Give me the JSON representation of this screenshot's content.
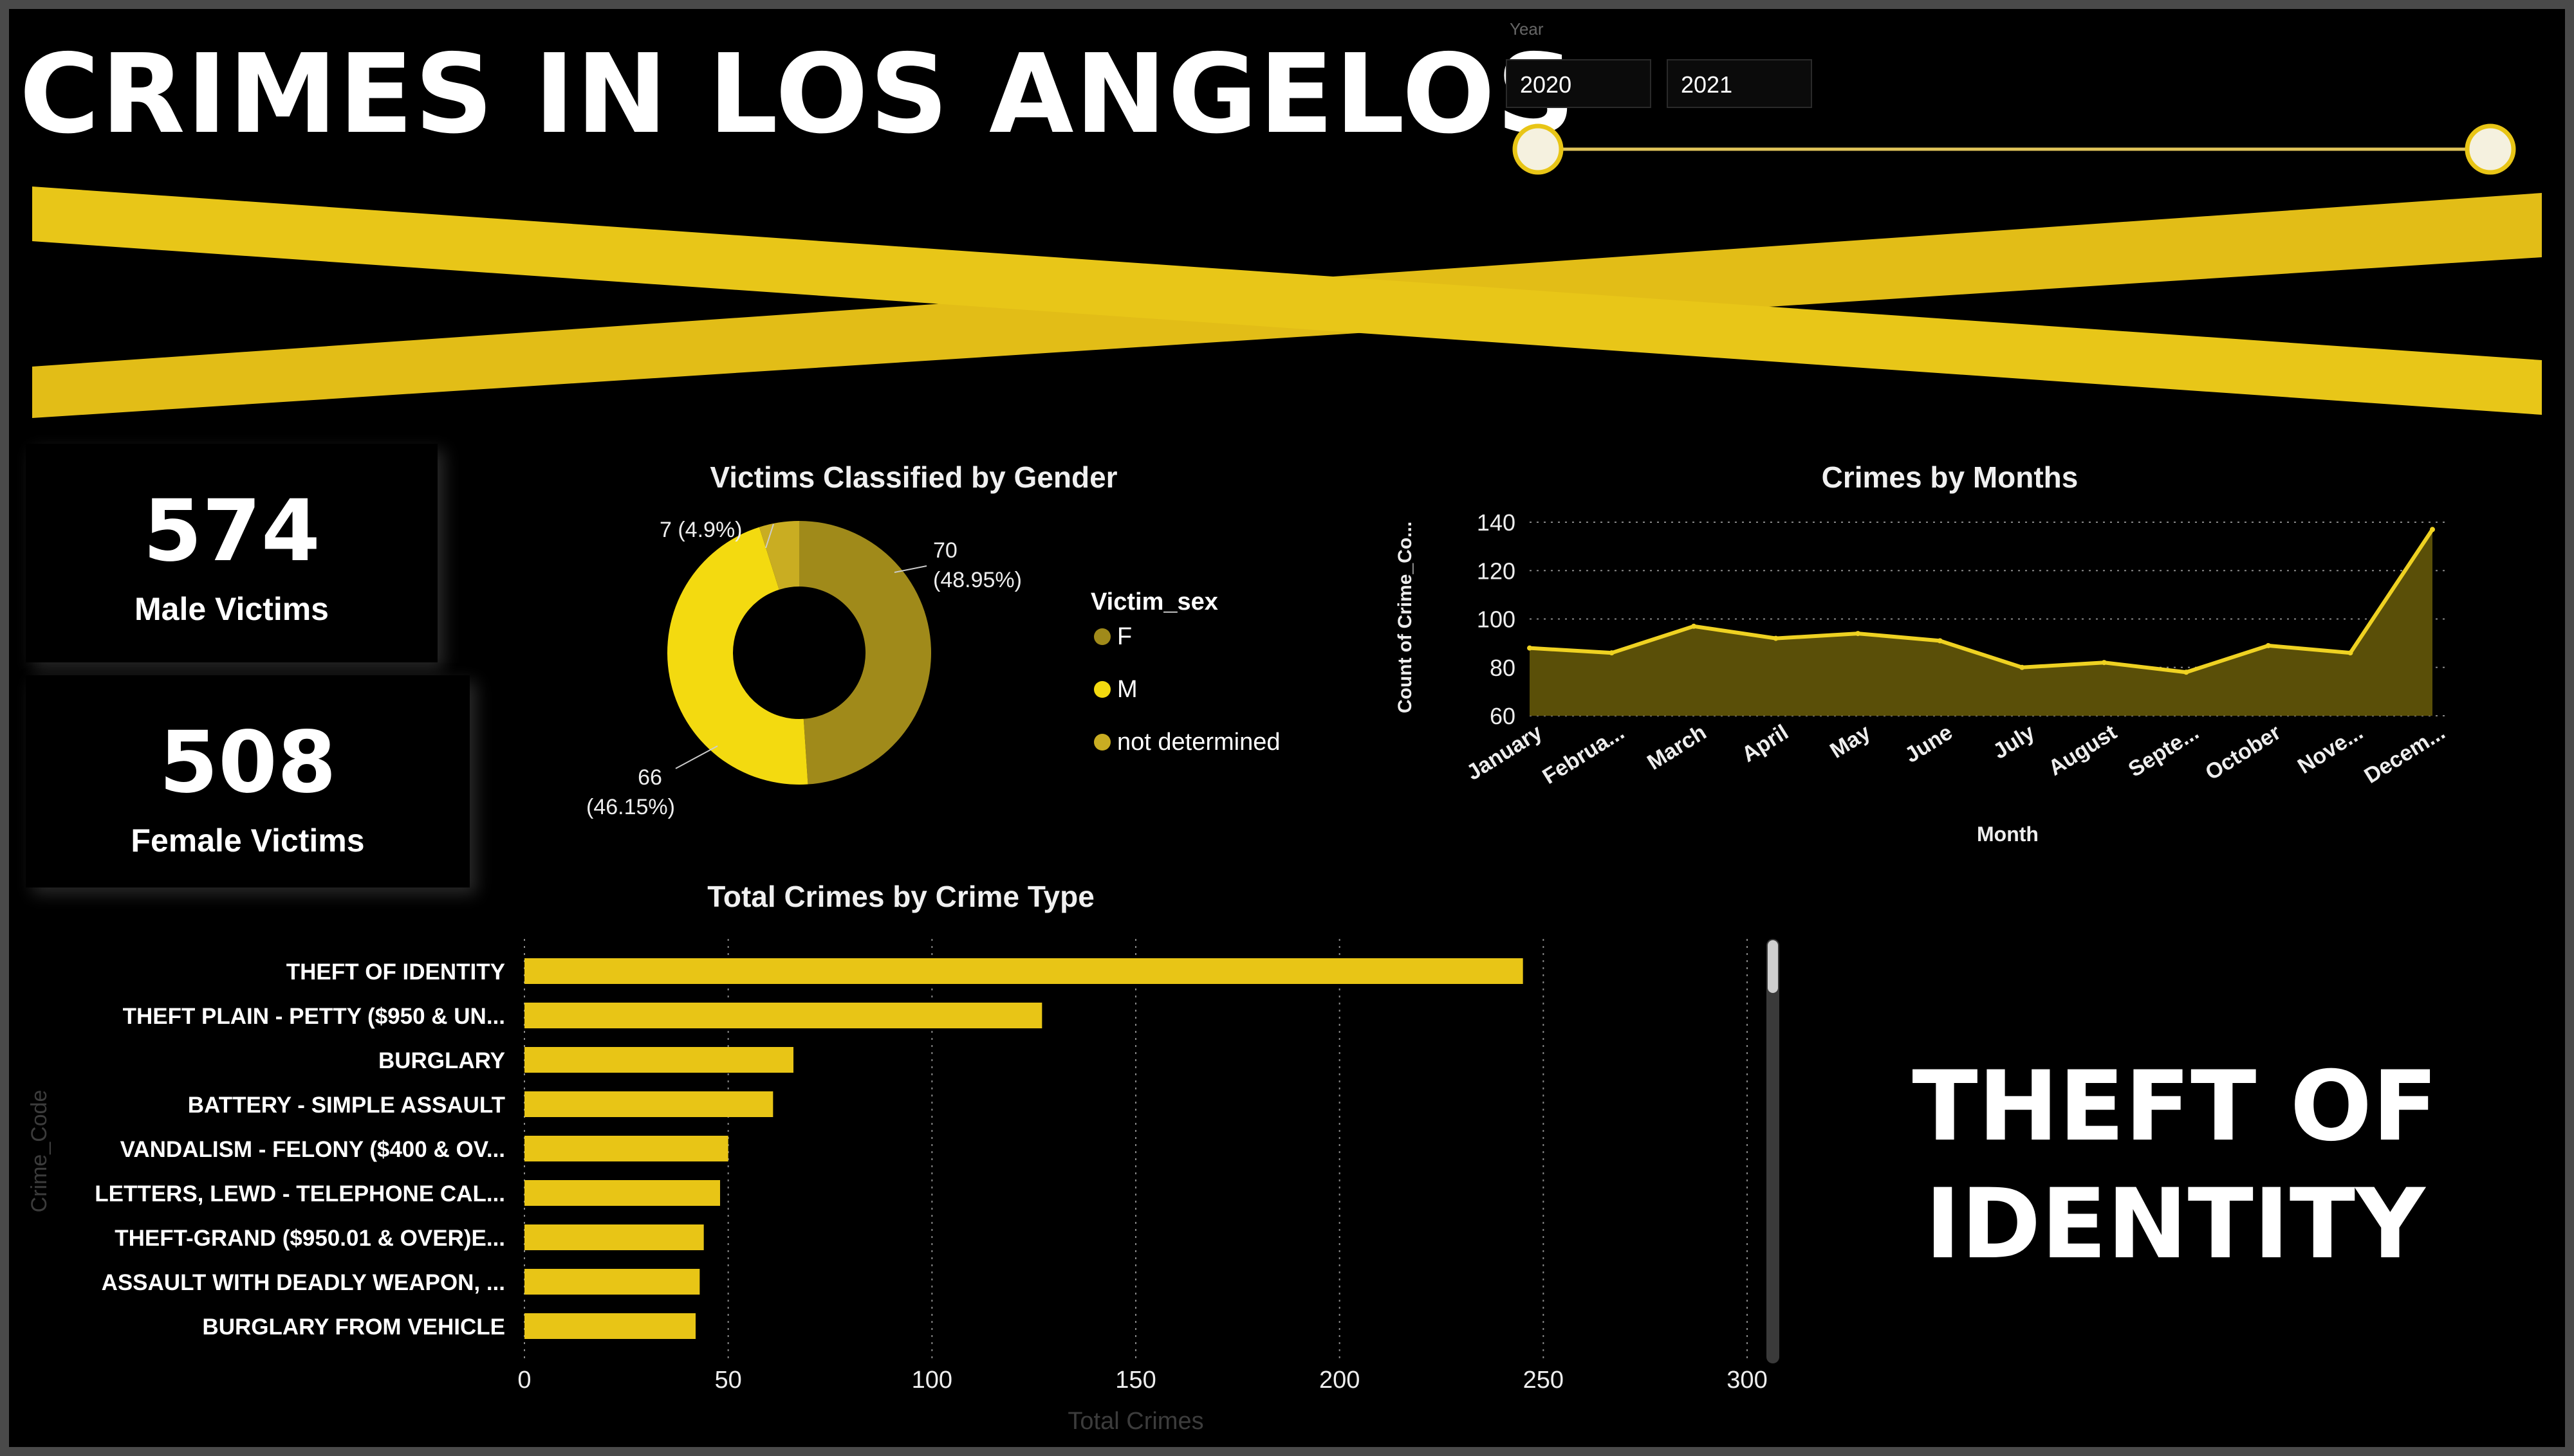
{
  "dashboard": {
    "title": "CRIMES IN LOS ANGELOS"
  },
  "slicer": {
    "label": "Year",
    "start_value": "2020",
    "end_value": "2021"
  },
  "cards": {
    "male": {
      "value": "574",
      "label": "Male Victims"
    },
    "female": {
      "value": "508",
      "label": "Female Victims"
    }
  },
  "highlight_text": "THEFT OF IDENTITY",
  "colors": {
    "accent": "#e8c516",
    "donut_f": "#a08a1a",
    "donut_m": "#f3da10",
    "donut_nd": "#c9ad22",
    "area_fill": "#5a4f08",
    "line": "#efd222",
    "tape": "#e2bd17"
  },
  "chart_data": [
    {
      "type": "pie",
      "title": "Victims Classified by Gender",
      "legend_title": "Victim_sex",
      "legend_position": "right",
      "labels": [
        "F",
        "M",
        "not determined"
      ],
      "values": [
        70,
        66,
        7
      ],
      "data_labels": [
        [
          "70",
          "(48.95%)"
        ],
        [
          "66",
          "(46.15%)"
        ],
        [
          "7 (4.9%)"
        ]
      ]
    },
    {
      "type": "area",
      "title": "Crimes by Months",
      "xlabel": "Month",
      "ylabel": "Count of Crime_Co...",
      "categories": [
        "January",
        "Februa...",
        "March",
        "April",
        "May",
        "June",
        "July",
        "August",
        "Septe...",
        "October",
        "Nove...",
        "Decem..."
      ],
      "values": [
        88,
        86,
        97,
        92,
        94,
        91,
        80,
        82,
        78,
        89,
        86,
        137
      ],
      "ylim": [
        60,
        140
      ],
      "yticks": [
        60,
        80,
        100,
        120,
        140
      ],
      "grid": true
    },
    {
      "type": "bar",
      "orientation": "horizontal",
      "title": "Total Crimes by Crime Type",
      "xlabel": "Total Crimes",
      "ylabel": "Crime_Code",
      "categories": [
        "THEFT OF IDENTITY",
        "THEFT PLAIN - PETTY ($950 & UN...",
        "BURGLARY",
        "BATTERY - SIMPLE ASSAULT",
        "VANDALISM - FELONY ($400 & OV...",
        "LETTERS, LEWD - TELEPHONE CAL...",
        "THEFT-GRAND ($950.01 & OVER)E...",
        "ASSAULT WITH DEADLY WEAPON, ...",
        "BURGLARY FROM VEHICLE"
      ],
      "values": [
        245,
        127,
        66,
        61,
        50,
        48,
        44,
        43,
        42
      ],
      "xlim": [
        0,
        300
      ],
      "xticks": [
        0,
        50,
        100,
        150,
        200,
        250,
        300
      ],
      "grid": true
    }
  ]
}
